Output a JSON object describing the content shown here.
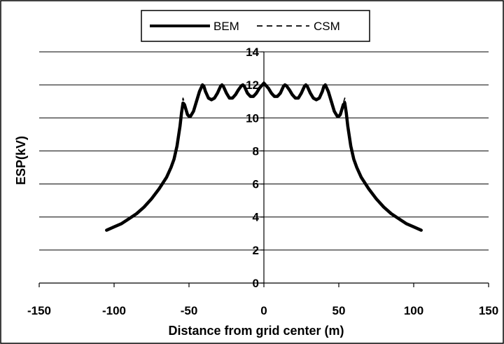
{
  "chart_data": {
    "type": "line",
    "xlabel": "Distance from grid center (m)",
    "ylabel": "ESP(kV)",
    "xlim": [
      -150,
      150
    ],
    "ylim": [
      0,
      14
    ],
    "x_ticks": [
      -150,
      -100,
      -50,
      0,
      50,
      100,
      150
    ],
    "y_ticks": [
      0,
      2,
      4,
      6,
      8,
      10,
      12,
      14
    ],
    "grid": "horizontal",
    "legend_position": "top-center",
    "series": [
      {
        "name": "BEM",
        "style": "solid",
        "color": "#000000",
        "x": [
          -105,
          -100,
          -95,
          -90,
          -85,
          -80,
          -75,
          -70,
          -65,
          -62,
          -60,
          -58,
          -56,
          -55,
          -54,
          -53,
          -52,
          -51,
          -50,
          -49,
          -47,
          -45,
          -43,
          -41,
          -40,
          -39,
          -37,
          -35,
          -33,
          -31,
          -29,
          -28,
          -27,
          -25,
          -23,
          -21,
          -19,
          -17,
          -15,
          -14,
          -13,
          -11,
          -9,
          -7,
          -5,
          -3,
          -1,
          0,
          1,
          3,
          5,
          7,
          9,
          11,
          13,
          14,
          15,
          17,
          19,
          21,
          23,
          25,
          27,
          28,
          29,
          31,
          33,
          35,
          37,
          39,
          40,
          41,
          43,
          45,
          47,
          49,
          50,
          51,
          52,
          53,
          54,
          55,
          56,
          58,
          60,
          62,
          65,
          70,
          75,
          80,
          85,
          90,
          95,
          100,
          105
        ],
        "y": [
          3.2,
          3.4,
          3.6,
          3.9,
          4.2,
          4.6,
          5.1,
          5.7,
          6.4,
          7.0,
          7.5,
          8.3,
          9.5,
          10.3,
          10.9,
          10.8,
          10.5,
          10.2,
          10.1,
          10.1,
          10.4,
          11.0,
          11.6,
          12.0,
          11.9,
          11.6,
          11.2,
          11.1,
          11.2,
          11.5,
          11.9,
          12.0,
          11.9,
          11.5,
          11.2,
          11.2,
          11.4,
          11.7,
          11.95,
          12.0,
          11.9,
          11.5,
          11.3,
          11.3,
          11.5,
          11.8,
          12.0,
          12.1,
          12.0,
          11.8,
          11.5,
          11.3,
          11.3,
          11.5,
          11.9,
          12.0,
          11.95,
          11.7,
          11.4,
          11.2,
          11.2,
          11.5,
          11.9,
          12.0,
          11.9,
          11.5,
          11.2,
          11.1,
          11.2,
          11.6,
          11.9,
          12.0,
          11.6,
          11.0,
          10.4,
          10.1,
          10.1,
          10.2,
          10.5,
          10.8,
          10.9,
          10.3,
          9.5,
          8.3,
          7.5,
          7.0,
          6.4,
          5.7,
          5.1,
          4.6,
          4.2,
          3.9,
          3.6,
          3.4,
          3.2
        ]
      },
      {
        "name": "CSM",
        "style": "dashed",
        "color": "#000000",
        "x": [
          -105,
          -100,
          -95,
          -90,
          -85,
          -80,
          -75,
          -70,
          -65,
          -62,
          -60,
          -58,
          -56,
          -55,
          -54,
          -53,
          -52,
          -51,
          -50,
          -49,
          -47,
          -45,
          -43,
          -41,
          -40,
          -39,
          -37,
          -35,
          -33,
          -31,
          -29,
          -28,
          -27,
          -25,
          -23,
          -21,
          -19,
          -17,
          -15,
          -14,
          -13,
          -11,
          -9,
          -7,
          -5,
          -3,
          -1,
          0,
          1,
          3,
          5,
          7,
          9,
          11,
          13,
          14,
          15,
          17,
          19,
          21,
          23,
          25,
          27,
          28,
          29,
          31,
          33,
          35,
          37,
          39,
          40,
          41,
          43,
          45,
          47,
          49,
          50,
          51,
          52,
          53,
          54,
          55,
          56,
          58,
          60,
          62,
          65,
          70,
          75,
          80,
          85,
          90,
          95,
          100,
          105
        ],
        "y": [
          3.2,
          3.4,
          3.6,
          3.9,
          4.2,
          4.6,
          5.1,
          5.7,
          6.4,
          7.0,
          7.5,
          8.3,
          9.6,
          10.5,
          11.2,
          10.9,
          10.5,
          10.2,
          10.1,
          10.1,
          10.4,
          11.0,
          11.6,
          12.0,
          11.9,
          11.6,
          11.2,
          11.1,
          11.2,
          11.5,
          11.9,
          12.0,
          11.9,
          11.5,
          11.2,
          11.2,
          11.4,
          11.7,
          11.95,
          12.0,
          11.9,
          11.5,
          11.3,
          11.3,
          11.5,
          11.8,
          12.0,
          12.2,
          12.0,
          11.8,
          11.5,
          11.3,
          11.3,
          11.5,
          11.9,
          12.0,
          11.95,
          11.7,
          11.4,
          11.2,
          11.2,
          11.5,
          11.9,
          12.0,
          11.9,
          11.5,
          11.2,
          11.1,
          11.2,
          11.6,
          11.9,
          12.0,
          11.6,
          11.0,
          10.4,
          10.1,
          10.1,
          10.2,
          10.5,
          10.9,
          11.2,
          10.5,
          9.6,
          8.3,
          7.5,
          7.0,
          6.4,
          5.7,
          5.1,
          4.6,
          4.2,
          3.9,
          3.6,
          3.4,
          3.2
        ]
      }
    ]
  }
}
